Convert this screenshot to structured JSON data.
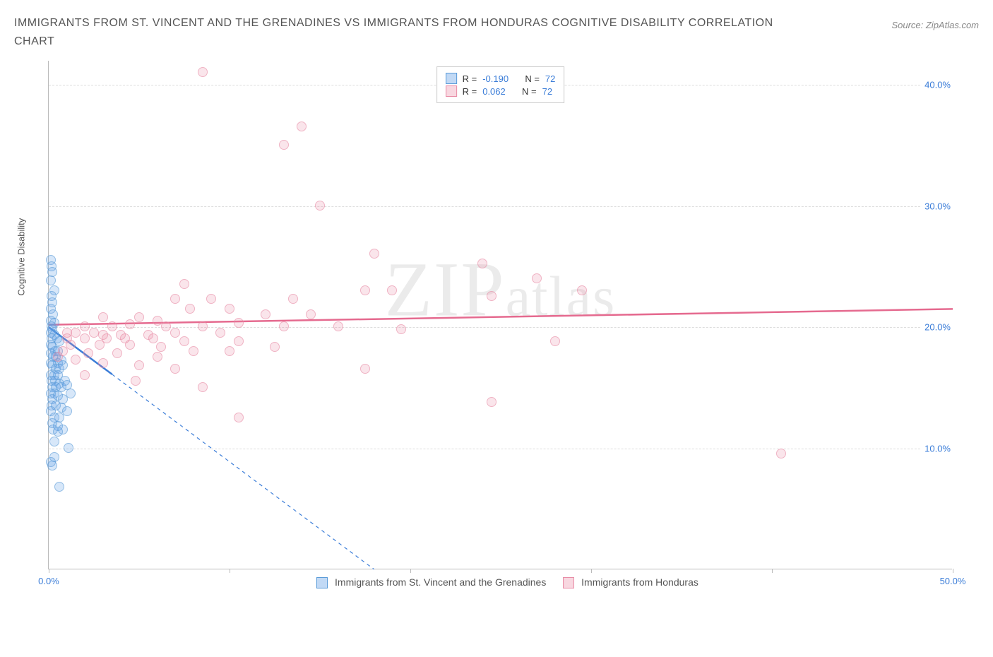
{
  "title": "IMMIGRANTS FROM ST. VINCENT AND THE GRENADINES VS IMMIGRANTS FROM HONDURAS COGNITIVE DISABILITY CORRELATION CHART",
  "source": "Source: ZipAtlas.com",
  "y_axis_label": "Cognitive Disability",
  "watermark": "ZIPatlas",
  "chart": {
    "type": "scatter",
    "xlim": [
      0,
      50
    ],
    "ylim": [
      0,
      42
    ],
    "x_ticks": [
      0,
      10,
      20,
      30,
      40,
      50
    ],
    "x_tick_labels": [
      "0.0%",
      "",
      "",
      "",
      "",
      "50.0%"
    ],
    "y_ticks": [
      10,
      20,
      30,
      40
    ],
    "y_tick_labels": [
      "10.0%",
      "20.0%",
      "30.0%",
      "40.0%"
    ],
    "grid_color": "#dddddd",
    "axis_color": "#bbbbbb",
    "background_color": "#ffffff",
    "tick_label_color": "#3b7dd8",
    "marker_radius": 7,
    "series": [
      {
        "id": "a",
        "name": "Immigrants from St. Vincent and the Grenadines",
        "color_fill": "rgba(100,160,230,0.4)",
        "color_stroke": "#5a9bd8",
        "r_value": "-0.190",
        "n_value": "72",
        "trend": {
          "x1": 0,
          "y1": 20.0,
          "x2": 18,
          "y2": 0,
          "solid_until_x": 3.5,
          "color": "#3b7dd8"
        },
        "points": [
          [
            0.1,
            25.5
          ],
          [
            0.15,
            25.0
          ],
          [
            0.2,
            24.5
          ],
          [
            0.1,
            23.8
          ],
          [
            0.3,
            23.0
          ],
          [
            0.15,
            22.5
          ],
          [
            0.2,
            22.0
          ],
          [
            0.1,
            21.5
          ],
          [
            0.25,
            21.0
          ],
          [
            0.1,
            20.5
          ],
          [
            0.3,
            20.3
          ],
          [
            0.15,
            20.0
          ],
          [
            0.2,
            19.8
          ],
          [
            0.1,
            19.5
          ],
          [
            0.3,
            19.3
          ],
          [
            0.15,
            19.0
          ],
          [
            0.45,
            19.0
          ],
          [
            0.6,
            18.8
          ],
          [
            0.1,
            18.5
          ],
          [
            0.2,
            18.3
          ],
          [
            0.35,
            18.0
          ],
          [
            0.5,
            18.0
          ],
          [
            0.1,
            17.8
          ],
          [
            0.25,
            17.5
          ],
          [
            0.4,
            17.5
          ],
          [
            0.1,
            17.0
          ],
          [
            0.5,
            17.0
          ],
          [
            0.7,
            17.2
          ],
          [
            0.2,
            16.8
          ],
          [
            0.4,
            16.5
          ],
          [
            0.6,
            16.5
          ],
          [
            0.8,
            16.8
          ],
          [
            0.1,
            16.0
          ],
          [
            0.3,
            16.0
          ],
          [
            0.5,
            16.0
          ],
          [
            0.15,
            15.5
          ],
          [
            0.35,
            15.5
          ],
          [
            0.6,
            15.3
          ],
          [
            0.9,
            15.5
          ],
          [
            0.2,
            15.0
          ],
          [
            0.4,
            15.0
          ],
          [
            0.7,
            15.0
          ],
          [
            1.0,
            15.2
          ],
          [
            0.1,
            14.5
          ],
          [
            0.3,
            14.5
          ],
          [
            0.5,
            14.3
          ],
          [
            0.8,
            14.0
          ],
          [
            1.2,
            14.5
          ],
          [
            0.2,
            14.0
          ],
          [
            0.15,
            13.5
          ],
          [
            0.4,
            13.5
          ],
          [
            0.7,
            13.3
          ],
          [
            1.0,
            13.0
          ],
          [
            0.1,
            13.0
          ],
          [
            0.3,
            12.5
          ],
          [
            0.6,
            12.5
          ],
          [
            0.2,
            12.0
          ],
          [
            0.5,
            11.8
          ],
          [
            0.8,
            11.5
          ],
          [
            0.25,
            11.5
          ],
          [
            0.5,
            11.3
          ],
          [
            0.3,
            10.5
          ],
          [
            1.1,
            10.0
          ],
          [
            0.3,
            9.2
          ],
          [
            0.1,
            8.8
          ],
          [
            0.2,
            8.5
          ],
          [
            0.6,
            6.8
          ]
        ]
      },
      {
        "id": "b",
        "name": "Immigrants from Honduras",
        "color_fill": "rgba(235,140,165,0.35)",
        "color_stroke": "#e88ba5",
        "r_value": "0.062",
        "n_value": "72",
        "trend": {
          "x1": 0,
          "y1": 20.2,
          "x2": 50,
          "y2": 21.5,
          "solid_until_x": 50,
          "color": "#e56a8f"
        },
        "points": [
          [
            8.5,
            41.0
          ],
          [
            14.0,
            36.5
          ],
          [
            13.0,
            35.0
          ],
          [
            15.0,
            30.0
          ],
          [
            18.0,
            26.0
          ],
          [
            24.0,
            25.2
          ],
          [
            27.0,
            24.0
          ],
          [
            7.5,
            23.5
          ],
          [
            7.0,
            22.3
          ],
          [
            9.0,
            22.3
          ],
          [
            13.5,
            22.3
          ],
          [
            17.5,
            23.0
          ],
          [
            19.0,
            23.0
          ],
          [
            24.5,
            22.5
          ],
          [
            29.5,
            23.0
          ],
          [
            7.8,
            21.5
          ],
          [
            10.0,
            21.5
          ],
          [
            12.0,
            21.0
          ],
          [
            14.5,
            21.0
          ],
          [
            3.0,
            20.8
          ],
          [
            5.0,
            20.8
          ],
          [
            6.0,
            20.5
          ],
          [
            2.0,
            20.0
          ],
          [
            3.5,
            20.0
          ],
          [
            4.5,
            20.2
          ],
          [
            6.5,
            20.0
          ],
          [
            8.5,
            20.0
          ],
          [
            10.5,
            20.3
          ],
          [
            13.0,
            20.0
          ],
          [
            16.0,
            20.0
          ],
          [
            1.0,
            19.5
          ],
          [
            1.5,
            19.5
          ],
          [
            2.5,
            19.5
          ],
          [
            3.0,
            19.3
          ],
          [
            4.0,
            19.3
          ],
          [
            5.5,
            19.3
          ],
          [
            7.0,
            19.5
          ],
          [
            9.5,
            19.5
          ],
          [
            19.5,
            19.8
          ],
          [
            1.0,
            19.0
          ],
          [
            2.0,
            19.0
          ],
          [
            3.2,
            19.0
          ],
          [
            4.2,
            19.0
          ],
          [
            5.8,
            19.0
          ],
          [
            7.5,
            18.8
          ],
          [
            10.5,
            18.8
          ],
          [
            28.0,
            18.8
          ],
          [
            1.2,
            18.5
          ],
          [
            2.8,
            18.5
          ],
          [
            4.5,
            18.5
          ],
          [
            6.2,
            18.3
          ],
          [
            8.0,
            18.0
          ],
          [
            10.0,
            18.0
          ],
          [
            12.5,
            18.3
          ],
          [
            0.8,
            18.0
          ],
          [
            2.2,
            17.8
          ],
          [
            3.8,
            17.8
          ],
          [
            6.0,
            17.5
          ],
          [
            0.5,
            17.5
          ],
          [
            1.5,
            17.3
          ],
          [
            3.0,
            17.0
          ],
          [
            5.0,
            16.8
          ],
          [
            7.0,
            16.5
          ],
          [
            17.5,
            16.5
          ],
          [
            2.0,
            16.0
          ],
          [
            4.8,
            15.5
          ],
          [
            8.5,
            15.0
          ],
          [
            24.5,
            13.8
          ],
          [
            10.5,
            12.5
          ],
          [
            40.5,
            9.5
          ]
        ]
      }
    ]
  },
  "legend_top_template": {
    "r_label": "R =",
    "n_label": "N ="
  },
  "legend_bottom": [
    {
      "series": "a"
    },
    {
      "series": "b"
    }
  ]
}
